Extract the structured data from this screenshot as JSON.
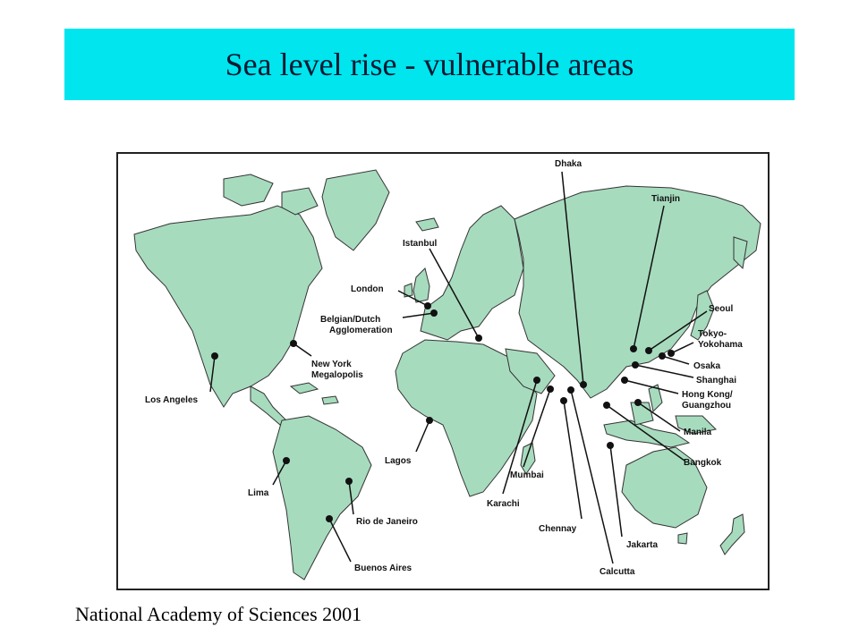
{
  "title": "Sea level rise - vulnerable areas",
  "source": "National Academy of Sciences 2001",
  "colors": {
    "title_bg": "#00e5ee",
    "land": "#a7dbbe",
    "ocean": "#ffffff",
    "border": "#222222",
    "marker": "#111111"
  },
  "cities": [
    {
      "id": "dhaka",
      "label": "Dhaka"
    },
    {
      "id": "tianjin",
      "label": "Tianjin"
    },
    {
      "id": "istanbul",
      "label": "Istanbul"
    },
    {
      "id": "london",
      "label": "London"
    },
    {
      "id": "belgian",
      "label": "Belgian/Dutch"
    },
    {
      "id": "belgian2",
      "label": "Agglomeration"
    },
    {
      "id": "newyork",
      "label": "New York"
    },
    {
      "id": "newyork2",
      "label": "Megalopolis"
    },
    {
      "id": "losangeles",
      "label": "Los Angeles"
    },
    {
      "id": "seoul",
      "label": "Seoul"
    },
    {
      "id": "tokyo",
      "label": "Tokyo-"
    },
    {
      "id": "tokyo2",
      "label": "Yokohama"
    },
    {
      "id": "osaka",
      "label": "Osaka"
    },
    {
      "id": "shanghai",
      "label": "Shanghai"
    },
    {
      "id": "hongkong",
      "label": "Hong Kong/"
    },
    {
      "id": "hongkong2",
      "label": "Guangzhou"
    },
    {
      "id": "manila",
      "label": "Manila"
    },
    {
      "id": "bangkok",
      "label": "Bangkok"
    },
    {
      "id": "lagos",
      "label": "Lagos"
    },
    {
      "id": "lima",
      "label": "Lima"
    },
    {
      "id": "rio",
      "label": "Rio de Janeiro"
    },
    {
      "id": "buenosaires",
      "label": "Buenos Aires"
    },
    {
      "id": "mumbai",
      "label": "Mumbai"
    },
    {
      "id": "karachi",
      "label": "Karachi"
    },
    {
      "id": "chennay",
      "label": "Chennay"
    },
    {
      "id": "jakarta",
      "label": "Jakarta"
    },
    {
      "id": "calcutta",
      "label": "Calcutta"
    }
  ]
}
